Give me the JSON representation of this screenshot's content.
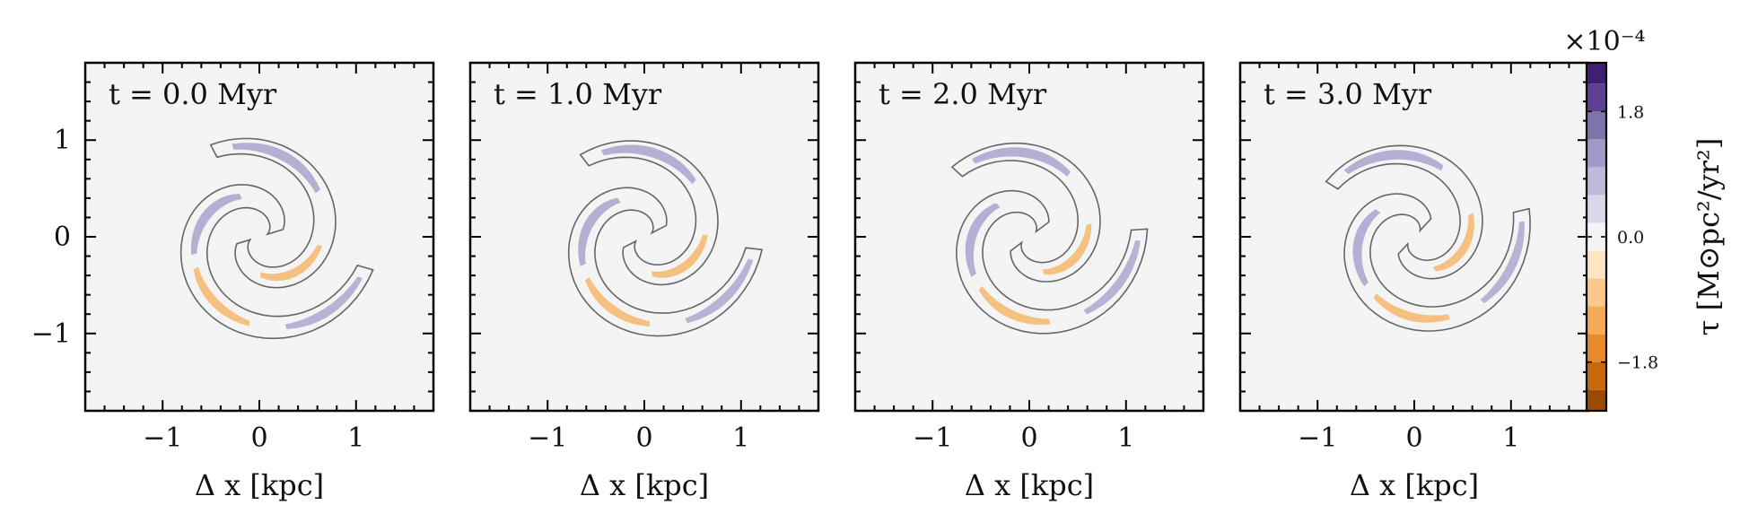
{
  "chart_data": [
    {
      "type": "heatmap",
      "title": "t = 0.0 Myr",
      "xlabel": "Δ x [kpc]",
      "ylabel": "",
      "xlim": [
        -1.8,
        1.8
      ],
      "ylim": [
        -1.8,
        1.8
      ],
      "xticks": [
        -1,
        0,
        1
      ],
      "yticks": [
        -1,
        0,
        1
      ],
      "xtick_labels": [
        "−1",
        "0",
        "1"
      ],
      "ytick_labels": [
        "−1",
        "0",
        "1"
      ],
      "rotation_deg": 0
    },
    {
      "type": "heatmap",
      "title": "t = 1.0 Myr",
      "xlabel": "Δ x [kpc]",
      "ylabel": "",
      "xlim": [
        -1.8,
        1.8
      ],
      "ylim": [
        -1.8,
        1.8
      ],
      "xticks": [
        -1,
        0,
        1
      ],
      "xtick_labels": [
        "−1",
        "0",
        "1"
      ],
      "rotation_deg": 10
    },
    {
      "type": "heatmap",
      "title": "t = 2.0 Myr",
      "xlabel": "Δ x [kpc]",
      "ylabel": "",
      "xlim": [
        -1.8,
        1.8
      ],
      "ylim": [
        -1.8,
        1.8
      ],
      "xticks": [
        -1,
        0,
        1
      ],
      "xtick_labels": [
        "−1",
        "0",
        "1"
      ],
      "rotation_deg": 20
    },
    {
      "type": "heatmap",
      "title": "t = 3.0 Myr",
      "xlabel": "Δ x [kpc]",
      "ylabel": "",
      "xlim": [
        -1.8,
        1.8
      ],
      "ylim": [
        -1.8,
        1.8
      ],
      "xticks": [
        -1,
        0,
        1
      ],
      "xtick_labels": [
        "−1",
        "0",
        "1"
      ],
      "rotation_deg": 30
    }
  ],
  "colorbar": {
    "label": "τ [M⊙pc²/yr²]",
    "multiplier": "×10⁻⁴",
    "range": [
      -2.5,
      2.5
    ],
    "tick_values": [
      1.8,
      0.0,
      -1.8
    ],
    "tick_labels": [
      "1.8",
      "0.0",
      "−1.8"
    ],
    "bands": [
      {
        "from": 2.2,
        "to": 2.5,
        "color": "#3f1f6e"
      },
      {
        "from": 1.8,
        "to": 2.2,
        "color": "#5e3f94"
      },
      {
        "from": 1.4,
        "to": 1.8,
        "color": "#8073ac"
      },
      {
        "from": 1.0,
        "to": 1.4,
        "color": "#a09bc6"
      },
      {
        "from": 0.6,
        "to": 1.0,
        "color": "#bcbad8"
      },
      {
        "from": 0.2,
        "to": 0.6,
        "color": "#d8d8ea"
      },
      {
        "from": -0.2,
        "to": 0.2,
        "color": "#f4f4f5"
      },
      {
        "from": -0.6,
        "to": -0.2,
        "color": "#fde4c2"
      },
      {
        "from": -1.0,
        "to": -0.6,
        "color": "#fdc88a"
      },
      {
        "from": -1.4,
        "to": -1.0,
        "color": "#f8ab57"
      },
      {
        "from": -1.8,
        "to": -1.4,
        "color": "#e8892c"
      },
      {
        "from": -2.2,
        "to": -1.8,
        "color": "#c8690f"
      },
      {
        "from": -2.5,
        "to": -2.2,
        "color": "#9a4a05"
      }
    ]
  },
  "colors": {
    "panel_bg": "#f4f4f4",
    "contour": "#666666",
    "positive": "#a7a3cc",
    "negative": "#f5b66b"
  }
}
